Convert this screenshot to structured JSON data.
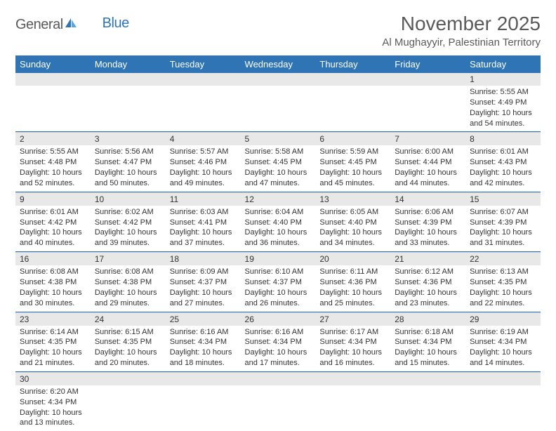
{
  "logo": {
    "text1": "General",
    "text2": "Blue"
  },
  "title": "November 2025",
  "subtitle": "Al Mughayyir, Palestinian Territory",
  "columns": [
    "Sunday",
    "Monday",
    "Tuesday",
    "Wednesday",
    "Thursday",
    "Friday",
    "Saturday"
  ],
  "colors": {
    "header_bg": "#2f75b5",
    "header_text": "#ffffff",
    "daynum_bg": "#e8e8e8",
    "row_divider": "#2f75b5",
    "text": "#333333",
    "logo_gray": "#5a5a5a",
    "logo_blue": "#2f75b5"
  },
  "weeks": [
    [
      {
        "n": "",
        "sr": "",
        "ss": "",
        "dl": ""
      },
      {
        "n": "",
        "sr": "",
        "ss": "",
        "dl": ""
      },
      {
        "n": "",
        "sr": "",
        "ss": "",
        "dl": ""
      },
      {
        "n": "",
        "sr": "",
        "ss": "",
        "dl": ""
      },
      {
        "n": "",
        "sr": "",
        "ss": "",
        "dl": ""
      },
      {
        "n": "",
        "sr": "",
        "ss": "",
        "dl": ""
      },
      {
        "n": "1",
        "sr": "Sunrise: 5:55 AM",
        "ss": "Sunset: 4:49 PM",
        "dl": "Daylight: 10 hours and 54 minutes."
      }
    ],
    [
      {
        "n": "2",
        "sr": "Sunrise: 5:55 AM",
        "ss": "Sunset: 4:48 PM",
        "dl": "Daylight: 10 hours and 52 minutes."
      },
      {
        "n": "3",
        "sr": "Sunrise: 5:56 AM",
        "ss": "Sunset: 4:47 PM",
        "dl": "Daylight: 10 hours and 50 minutes."
      },
      {
        "n": "4",
        "sr": "Sunrise: 5:57 AM",
        "ss": "Sunset: 4:46 PM",
        "dl": "Daylight: 10 hours and 49 minutes."
      },
      {
        "n": "5",
        "sr": "Sunrise: 5:58 AM",
        "ss": "Sunset: 4:45 PM",
        "dl": "Daylight: 10 hours and 47 minutes."
      },
      {
        "n": "6",
        "sr": "Sunrise: 5:59 AM",
        "ss": "Sunset: 4:45 PM",
        "dl": "Daylight: 10 hours and 45 minutes."
      },
      {
        "n": "7",
        "sr": "Sunrise: 6:00 AM",
        "ss": "Sunset: 4:44 PM",
        "dl": "Daylight: 10 hours and 44 minutes."
      },
      {
        "n": "8",
        "sr": "Sunrise: 6:01 AM",
        "ss": "Sunset: 4:43 PM",
        "dl": "Daylight: 10 hours and 42 minutes."
      }
    ],
    [
      {
        "n": "9",
        "sr": "Sunrise: 6:01 AM",
        "ss": "Sunset: 4:42 PM",
        "dl": "Daylight: 10 hours and 40 minutes."
      },
      {
        "n": "10",
        "sr": "Sunrise: 6:02 AM",
        "ss": "Sunset: 4:42 PM",
        "dl": "Daylight: 10 hours and 39 minutes."
      },
      {
        "n": "11",
        "sr": "Sunrise: 6:03 AM",
        "ss": "Sunset: 4:41 PM",
        "dl": "Daylight: 10 hours and 37 minutes."
      },
      {
        "n": "12",
        "sr": "Sunrise: 6:04 AM",
        "ss": "Sunset: 4:40 PM",
        "dl": "Daylight: 10 hours and 36 minutes."
      },
      {
        "n": "13",
        "sr": "Sunrise: 6:05 AM",
        "ss": "Sunset: 4:40 PM",
        "dl": "Daylight: 10 hours and 34 minutes."
      },
      {
        "n": "14",
        "sr": "Sunrise: 6:06 AM",
        "ss": "Sunset: 4:39 PM",
        "dl": "Daylight: 10 hours and 33 minutes."
      },
      {
        "n": "15",
        "sr": "Sunrise: 6:07 AM",
        "ss": "Sunset: 4:39 PM",
        "dl": "Daylight: 10 hours and 31 minutes."
      }
    ],
    [
      {
        "n": "16",
        "sr": "Sunrise: 6:08 AM",
        "ss": "Sunset: 4:38 PM",
        "dl": "Daylight: 10 hours and 30 minutes."
      },
      {
        "n": "17",
        "sr": "Sunrise: 6:08 AM",
        "ss": "Sunset: 4:38 PM",
        "dl": "Daylight: 10 hours and 29 minutes."
      },
      {
        "n": "18",
        "sr": "Sunrise: 6:09 AM",
        "ss": "Sunset: 4:37 PM",
        "dl": "Daylight: 10 hours and 27 minutes."
      },
      {
        "n": "19",
        "sr": "Sunrise: 6:10 AM",
        "ss": "Sunset: 4:37 PM",
        "dl": "Daylight: 10 hours and 26 minutes."
      },
      {
        "n": "20",
        "sr": "Sunrise: 6:11 AM",
        "ss": "Sunset: 4:36 PM",
        "dl": "Daylight: 10 hours and 25 minutes."
      },
      {
        "n": "21",
        "sr": "Sunrise: 6:12 AM",
        "ss": "Sunset: 4:36 PM",
        "dl": "Daylight: 10 hours and 23 minutes."
      },
      {
        "n": "22",
        "sr": "Sunrise: 6:13 AM",
        "ss": "Sunset: 4:35 PM",
        "dl": "Daylight: 10 hours and 22 minutes."
      }
    ],
    [
      {
        "n": "23",
        "sr": "Sunrise: 6:14 AM",
        "ss": "Sunset: 4:35 PM",
        "dl": "Daylight: 10 hours and 21 minutes."
      },
      {
        "n": "24",
        "sr": "Sunrise: 6:15 AM",
        "ss": "Sunset: 4:35 PM",
        "dl": "Daylight: 10 hours and 20 minutes."
      },
      {
        "n": "25",
        "sr": "Sunrise: 6:16 AM",
        "ss": "Sunset: 4:34 PM",
        "dl": "Daylight: 10 hours and 18 minutes."
      },
      {
        "n": "26",
        "sr": "Sunrise: 6:16 AM",
        "ss": "Sunset: 4:34 PM",
        "dl": "Daylight: 10 hours and 17 minutes."
      },
      {
        "n": "27",
        "sr": "Sunrise: 6:17 AM",
        "ss": "Sunset: 4:34 PM",
        "dl": "Daylight: 10 hours and 16 minutes."
      },
      {
        "n": "28",
        "sr": "Sunrise: 6:18 AM",
        "ss": "Sunset: 4:34 PM",
        "dl": "Daylight: 10 hours and 15 minutes."
      },
      {
        "n": "29",
        "sr": "Sunrise: 6:19 AM",
        "ss": "Sunset: 4:34 PM",
        "dl": "Daylight: 10 hours and 14 minutes."
      }
    ],
    [
      {
        "n": "30",
        "sr": "Sunrise: 6:20 AM",
        "ss": "Sunset: 4:34 PM",
        "dl": "Daylight: 10 hours and 13 minutes."
      },
      {
        "n": "",
        "sr": "",
        "ss": "",
        "dl": ""
      },
      {
        "n": "",
        "sr": "",
        "ss": "",
        "dl": ""
      },
      {
        "n": "",
        "sr": "",
        "ss": "",
        "dl": ""
      },
      {
        "n": "",
        "sr": "",
        "ss": "",
        "dl": ""
      },
      {
        "n": "",
        "sr": "",
        "ss": "",
        "dl": ""
      },
      {
        "n": "",
        "sr": "",
        "ss": "",
        "dl": ""
      }
    ]
  ]
}
